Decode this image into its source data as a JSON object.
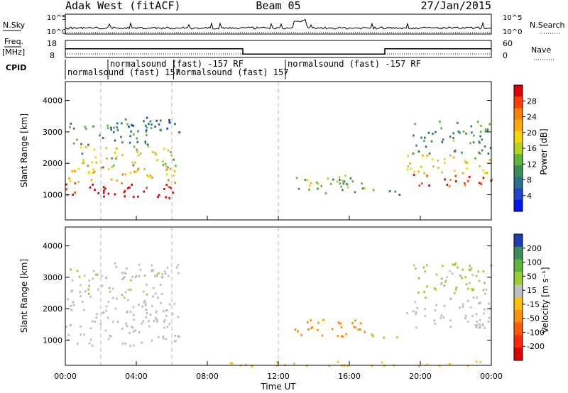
{
  "header": {
    "radar": "Adak West (fitACF)",
    "beam": "Beam 05",
    "date": "27/Jan/2015"
  },
  "panel_labels": {
    "nsky": "N.Sky",
    "nsearch": "N.Search",
    "freq": "Freq.",
    "freq_unit": "[MHz]",
    "nave": "Nave",
    "cpid": "CPID"
  },
  "noise_axis": {
    "left_ticks": [
      "10^5",
      "10^0"
    ],
    "right_ticks": [
      "10^5",
      "10^0"
    ]
  },
  "freq_axis": {
    "left_ticks": [
      "18",
      "8"
    ],
    "right_ticks": [
      "60",
      "0"
    ]
  },
  "cpid_labels": [
    {
      "text": "normalsound (fast) -157 RF",
      "hour": 2.4,
      "row": 0
    },
    {
      "text": "normalsound (fast) -157 RF",
      "hour": 12.4,
      "row": 0
    },
    {
      "text": "normalsound (fast) 157",
      "hour": 0.0,
      "row": 1
    },
    {
      "text": "normalsound (fast) 157",
      "hour": 6.1,
      "row": 1
    }
  ],
  "colorbars": {
    "power": {
      "label": "Power [dB]",
      "ticks": [
        "28",
        "24",
        "20",
        "16",
        "12",
        "8",
        "4"
      ],
      "colors": [
        "#e00000",
        "#ff4000",
        "#ff7f00",
        "#ffaa00",
        "#f5d700",
        "#b4d21e",
        "#5fb43c",
        "#3c8c5a",
        "#2d6e8c",
        "#1e46c8",
        "#0014f0"
      ]
    },
    "velocity": {
      "label": "Velocity [m s⁻¹]",
      "ticks": [
        "200",
        "100",
        "50",
        "15",
        "-15",
        "-50",
        "-100",
        "-200"
      ],
      "colors": [
        "#1e3cb4",
        "#3c8c5a",
        "#5fb43c",
        "#9acd32",
        "#bebebe",
        "#ffc000",
        "#ff9000",
        "#ff5a00",
        "#ff2800",
        "#e00000"
      ]
    }
  },
  "x_axis": {
    "label": "Time UT",
    "ticks": [
      "00:00",
      "04:00",
      "08:00",
      "12:00",
      "16:00",
      "20:00",
      "00:00"
    ]
  },
  "y_axis": {
    "label": "Slant Range [km]",
    "ticks": [
      "1000",
      "2000",
      "3000",
      "4000"
    ]
  },
  "chart_data": {
    "type": "heatmap",
    "time_range_hours": [
      0,
      24
    ],
    "range_km": [
      200,
      4600
    ],
    "guide_line_hours": [
      2,
      6,
      12
    ],
    "frequency_mhz": [
      {
        "start_h": 0,
        "end_h": 10,
        "freq": 14.5
      },
      {
        "start_h": 10,
        "end_h": 18,
        "freq": 10.5
      },
      {
        "start_h": 18,
        "end_h": 24,
        "freq": 14.5
      }
    ],
    "power_patches": [
      {
        "t0": 0.0,
        "t1": 6.4,
        "r0": 900,
        "r1": 1400,
        "value": 29
      },
      {
        "t0": 0.0,
        "t1": 6.4,
        "r0": 1400,
        "r1": 1900,
        "value": 20
      },
      {
        "t0": 0.2,
        "t1": 6.2,
        "r0": 1900,
        "r1": 2600,
        "value": 14
      },
      {
        "t0": 0.2,
        "t1": 5.5,
        "r0": 2600,
        "r1": 3300,
        "value": 10
      },
      {
        "t0": 2.0,
        "t1": 6.4,
        "r0": 3000,
        "r1": 3500,
        "value": 7
      },
      {
        "t0": 12.9,
        "t1": 16.9,
        "r0": 1050,
        "r1": 1650,
        "value": 12
      },
      {
        "t0": 13.5,
        "t1": 16.0,
        "r0": 1250,
        "r1": 1500,
        "value": 18
      },
      {
        "t0": 17.0,
        "t1": 19.0,
        "r0": 1000,
        "r1": 1200,
        "value": 9
      },
      {
        "t0": 19.5,
        "t1": 24.0,
        "r0": 1300,
        "r1": 1700,
        "value": 27
      },
      {
        "t0": 19.2,
        "t1": 24.0,
        "r0": 1700,
        "r1": 2300,
        "value": 17
      },
      {
        "t0": 19.5,
        "t1": 24.0,
        "r0": 2300,
        "r1": 3400,
        "value": 10
      }
    ],
    "velocity_patches": [
      {
        "t0": 0.0,
        "t1": 6.4,
        "r0": 850,
        "r1": 2400,
        "value": 0
      },
      {
        "t0": 0.2,
        "t1": 5.5,
        "r0": 2400,
        "r1": 3300,
        "value": 10
      },
      {
        "t0": 2.0,
        "t1": 6.4,
        "r0": 3000,
        "r1": 3500,
        "value": 0
      },
      {
        "t0": 12.9,
        "t1": 16.9,
        "r0": 1050,
        "r1": 1700,
        "value": -60
      },
      {
        "t0": 17.0,
        "t1": 19.0,
        "r0": 1050,
        "r1": 1250,
        "value": 30
      },
      {
        "t0": 19.2,
        "t1": 24.0,
        "r0": 1400,
        "r1": 2300,
        "value": 0
      },
      {
        "t0": 19.5,
        "t1": 24.0,
        "r0": 2300,
        "r1": 3500,
        "value": 20
      },
      {
        "t0": 8.0,
        "t1": 24.0,
        "r0": 200,
        "r1": 350,
        "value": -30
      }
    ]
  }
}
